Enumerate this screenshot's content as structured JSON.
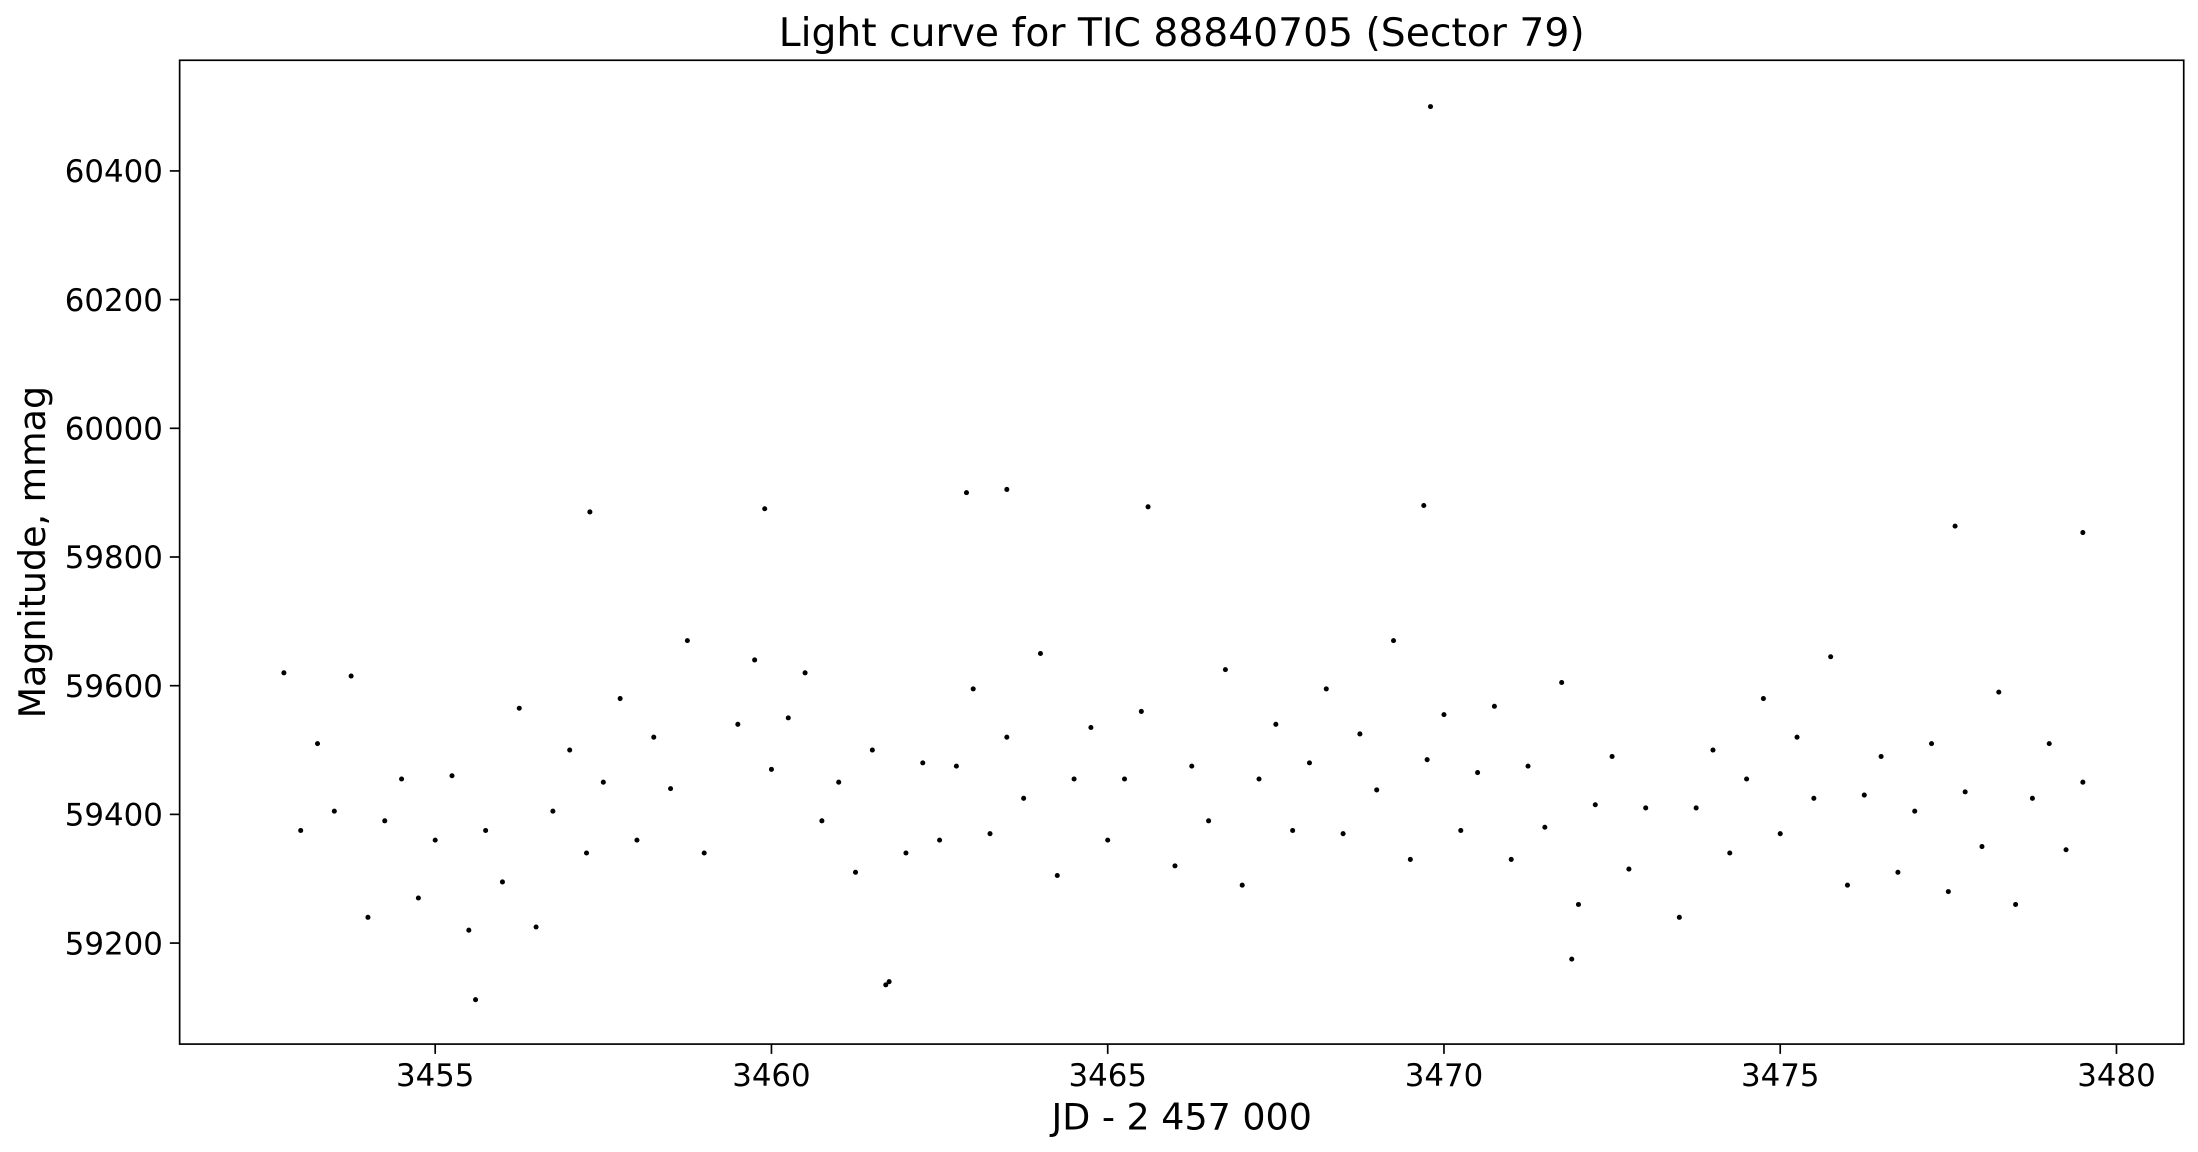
{
  "chart_data": {
    "type": "scatter",
    "title": "Light curve for TIC 88840705 (Sector 79)",
    "x_label": "JD - 2 457 000",
    "y_label": "Magnitude, mmag",
    "color": "#000000",
    "grid": false,
    "xlim": [
      3451.2,
      3481.0
    ],
    "ylim": [
      59043,
      60572
    ],
    "xticks": [
      3455,
      3460,
      3465,
      3470,
      3475,
      3480
    ],
    "yticks": [
      59200,
      59400,
      59600,
      59800,
      60000,
      60200,
      60400
    ],
    "x": [
      3452.75,
      3453.0,
      3453.25,
      3453.5,
      3453.75,
      3454.0,
      3454.25,
      3454.5,
      3454.75,
      3455.0,
      3455.25,
      3455.5,
      3455.75,
      3456.0,
      3456.25,
      3456.5,
      3456.75,
      3457.0,
      3457.25,
      3457.5,
      3457.75,
      3458.0,
      3458.25,
      3458.5,
      3458.75,
      3459.0,
      3459.5,
      3459.75,
      3460.0,
      3460.25,
      3460.5,
      3460.75,
      3461.0,
      3461.25,
      3461.5,
      3461.75,
      3462.0,
      3462.25,
      3462.5,
      3462.75,
      3463.0,
      3463.25,
      3463.5,
      3463.75,
      3464.0,
      3464.25,
      3464.5,
      3464.75,
      3465.0,
      3465.25,
      3465.5,
      3466.0,
      3466.25,
      3466.5,
      3466.75,
      3467.0,
      3467.25,
      3467.5,
      3467.75,
      3468.0,
      3468.25,
      3468.5,
      3468.75,
      3469.0,
      3469.25,
      3469.5,
      3469.75,
      3470.0,
      3470.25,
      3470.5,
      3470.75,
      3471.0,
      3471.25,
      3471.5,
      3471.75,
      3472.0,
      3472.25,
      3472.5,
      3472.75,
      3473.0,
      3473.5,
      3473.75,
      3474.0,
      3474.25,
      3474.5,
      3474.75,
      3475.0,
      3475.25,
      3475.5,
      3475.75,
      3476.0,
      3476.25,
      3476.5,
      3476.75,
      3477.0,
      3477.25,
      3477.5,
      3477.75,
      3478.0,
      3478.25,
      3478.5,
      3478.75,
      3479.0,
      3479.25,
      3479.5,
      3469.8,
      3463.5,
      3462.9,
      3459.9,
      3457.3,
      3465.6,
      3469.7,
      3479.5,
      3477.6,
      3455.6,
      3461.7,
      3471.9
    ],
    "values": [
      59620,
      59375,
      59510,
      59405,
      59615,
      59240,
      59390,
      59455,
      59270,
      59360,
      59460,
      59220,
      59375,
      59295,
      59565,
      59225,
      59405,
      59500,
      59340,
      59450,
      59580,
      59360,
      59520,
      59440,
      59670,
      59340,
      59540,
      59640,
      59470,
      59550,
      59620,
      59390,
      59450,
      59310,
      59500,
      59140,
      59340,
      59480,
      59360,
      59475,
      59595,
      59370,
      59520,
      59425,
      59650,
      59305,
      59455,
      59535,
      59360,
      59455,
      59560,
      59320,
      59475,
      59390,
      59625,
      59290,
      59455,
      59540,
      59375,
      59480,
      59595,
      59370,
      59525,
      59438,
      59670,
      59330,
      59485,
      59555,
      59375,
      59465,
      59568,
      59330,
      59475,
      59380,
      59605,
      59260,
      59415,
      59490,
      59315,
      59410,
      59240,
      59410,
      59500,
      59340,
      59455,
      59580,
      59370,
      59520,
      59425,
      59645,
      59290,
      59430,
      59490,
      59310,
      59405,
      59510,
      59280,
      59435,
      59350,
      59590,
      59260,
      59425,
      59510,
      59345,
      59450,
      60500,
      59905,
      59900,
      59875,
      59870,
      59878,
      59880,
      59838,
      59848,
      59112,
      59135,
      59175
    ]
  }
}
